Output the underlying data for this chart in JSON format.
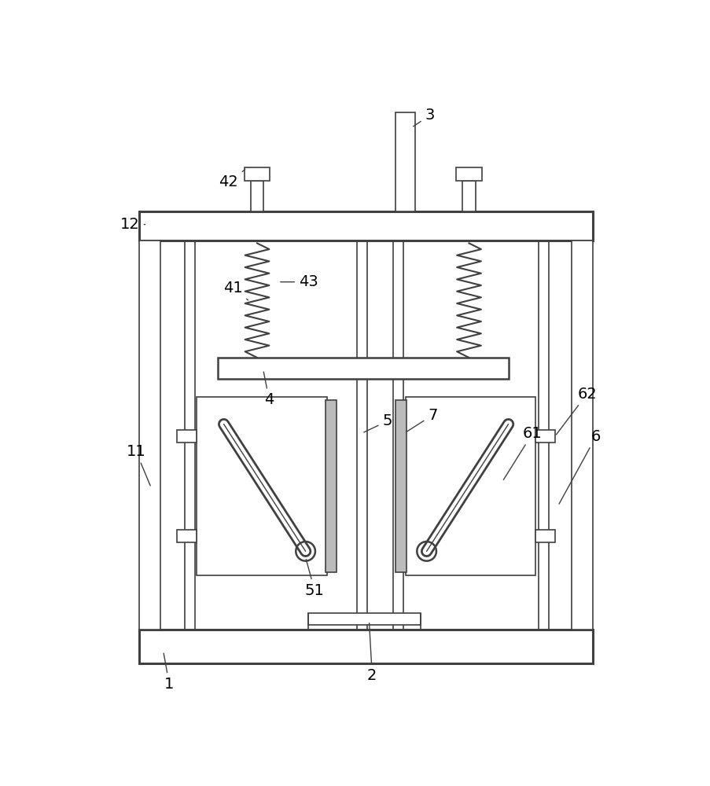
{
  "background": "#ffffff",
  "line_color": "#404040",
  "lw_thin": 1.2,
  "lw_med": 1.8,
  "lw_thick": 2.2,
  "fig_width": 9.04,
  "fig_height": 10.0
}
